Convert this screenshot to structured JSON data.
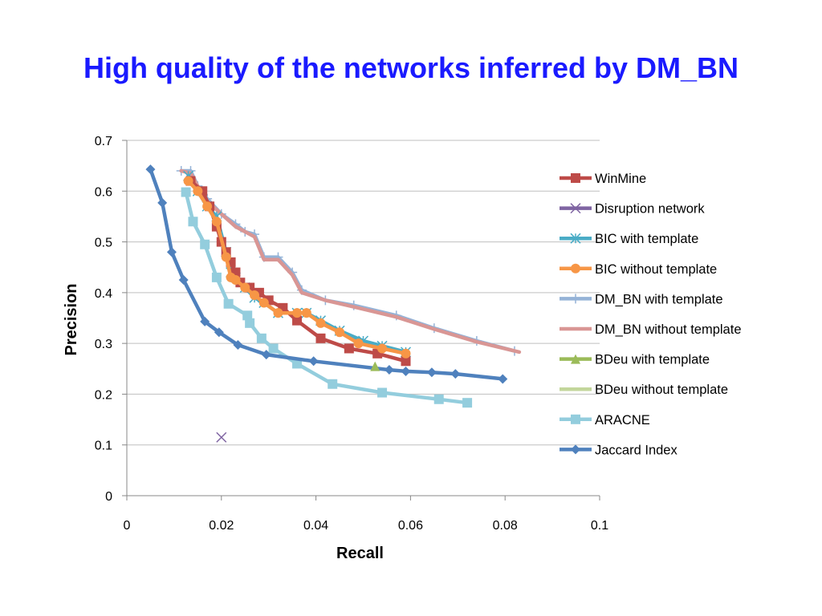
{
  "page": {
    "title": "High quality of the networks inferred by DM_BN"
  },
  "chart_data": {
    "type": "line",
    "xlabel": "Recall",
    "ylabel": "Precision",
    "xlim": [
      0,
      0.1
    ],
    "ylim": [
      0,
      0.7
    ],
    "x_ticks": [
      "0",
      "0.02",
      "0.04",
      "0.06",
      "0.08",
      "0.1"
    ],
    "y_ticks": [
      "0",
      "0.1",
      "0.2",
      "0.3",
      "0.4",
      "0.5",
      "0.6",
      "0.7"
    ],
    "grid": "horizontal",
    "legend_position": "right",
    "series": [
      {
        "name": "WinMine",
        "color": "#be4b48",
        "marker": "square",
        "points": [
          [
            0.0135,
            0.62
          ],
          [
            0.016,
            0.6
          ],
          [
            0.0175,
            0.57
          ],
          [
            0.019,
            0.53
          ],
          [
            0.02,
            0.5
          ],
          [
            0.021,
            0.48
          ],
          [
            0.022,
            0.46
          ],
          [
            0.023,
            0.44
          ],
          [
            0.024,
            0.42
          ],
          [
            0.026,
            0.41
          ],
          [
            0.028,
            0.4
          ],
          [
            0.03,
            0.385
          ],
          [
            0.033,
            0.37
          ],
          [
            0.036,
            0.345
          ],
          [
            0.041,
            0.31
          ],
          [
            0.047,
            0.29
          ],
          [
            0.053,
            0.28
          ],
          [
            0.059,
            0.265
          ]
        ]
      },
      {
        "name": "Disruption network",
        "color": "#7f64a2",
        "marker": "x",
        "points": [
          [
            0.02,
            0.115
          ]
        ]
      },
      {
        "name": "BIC with template",
        "color": "#4aacc6",
        "marker": "asterisk",
        "points": [
          [
            0.013,
            0.63
          ],
          [
            0.015,
            0.6
          ],
          [
            0.017,
            0.57
          ],
          [
            0.019,
            0.55
          ],
          [
            0.021,
            0.48
          ],
          [
            0.022,
            0.44
          ],
          [
            0.023,
            0.43
          ],
          [
            0.025,
            0.41
          ],
          [
            0.027,
            0.39
          ],
          [
            0.029,
            0.38
          ],
          [
            0.032,
            0.36
          ],
          [
            0.036,
            0.36
          ],
          [
            0.038,
            0.36
          ],
          [
            0.041,
            0.345
          ],
          [
            0.045,
            0.325
          ],
          [
            0.05,
            0.305
          ],
          [
            0.054,
            0.295
          ],
          [
            0.059,
            0.283
          ]
        ]
      },
      {
        "name": "BIC without template",
        "color": "#f79646",
        "marker": "circle",
        "points": [
          [
            0.013,
            0.62
          ],
          [
            0.015,
            0.6
          ],
          [
            0.017,
            0.57
          ],
          [
            0.019,
            0.54
          ],
          [
            0.021,
            0.47
          ],
          [
            0.022,
            0.43
          ],
          [
            0.023,
            0.425
          ],
          [
            0.025,
            0.41
          ],
          [
            0.027,
            0.395
          ],
          [
            0.029,
            0.38
          ],
          [
            0.032,
            0.36
          ],
          [
            0.036,
            0.36
          ],
          [
            0.038,
            0.36
          ],
          [
            0.041,
            0.34
          ],
          [
            0.045,
            0.322
          ],
          [
            0.049,
            0.3
          ],
          [
            0.054,
            0.29
          ],
          [
            0.059,
            0.28
          ]
        ]
      },
      {
        "name": "DM_BN with template",
        "color": "#95b3d7",
        "marker": "plus",
        "points": [
          [
            0.0115,
            0.64
          ],
          [
            0.0135,
            0.64
          ],
          [
            0.015,
            0.61
          ],
          [
            0.017,
            0.585
          ],
          [
            0.02,
            0.555
          ],
          [
            0.023,
            0.535
          ],
          [
            0.025,
            0.52
          ],
          [
            0.027,
            0.515
          ],
          [
            0.029,
            0.47
          ],
          [
            0.032,
            0.47
          ],
          [
            0.035,
            0.44
          ],
          [
            0.037,
            0.405
          ],
          [
            0.042,
            0.385
          ],
          [
            0.048,
            0.375
          ],
          [
            0.057,
            0.355
          ],
          [
            0.065,
            0.33
          ],
          [
            0.074,
            0.305
          ],
          [
            0.082,
            0.285
          ]
        ]
      },
      {
        "name": "DM_BN without template",
        "color": "#d99694",
        "marker": "none",
        "points": [
          [
            0.0115,
            0.64
          ],
          [
            0.0135,
            0.635
          ],
          [
            0.015,
            0.61
          ],
          [
            0.017,
            0.58
          ],
          [
            0.02,
            0.555
          ],
          [
            0.023,
            0.53
          ],
          [
            0.025,
            0.52
          ],
          [
            0.027,
            0.51
          ],
          [
            0.029,
            0.465
          ],
          [
            0.032,
            0.465
          ],
          [
            0.035,
            0.435
          ],
          [
            0.037,
            0.4
          ],
          [
            0.042,
            0.385
          ],
          [
            0.048,
            0.372
          ],
          [
            0.057,
            0.352
          ],
          [
            0.065,
            0.328
          ],
          [
            0.074,
            0.303
          ],
          [
            0.083,
            0.283
          ]
        ]
      },
      {
        "name": "BDeu with template",
        "color": "#9bbb59",
        "marker": "triangle",
        "points": [
          [
            0.0525,
            0.255
          ]
        ]
      },
      {
        "name": "BDeu without template",
        "color": "#c3d69b",
        "marker": "none",
        "points": [
          [
            0.051,
            0.3
          ],
          [
            0.054,
            0.295
          ],
          [
            0.058,
            0.283
          ]
        ]
      },
      {
        "name": "ARACNE",
        "color": "#93cddd",
        "marker": "square",
        "points": [
          [
            0.0125,
            0.598
          ],
          [
            0.014,
            0.54
          ],
          [
            0.0165,
            0.495
          ],
          [
            0.019,
            0.43
          ],
          [
            0.0215,
            0.378
          ],
          [
            0.0255,
            0.355
          ],
          [
            0.026,
            0.34
          ],
          [
            0.0285,
            0.31
          ],
          [
            0.031,
            0.29
          ],
          [
            0.036,
            0.26
          ],
          [
            0.0435,
            0.22
          ],
          [
            0.054,
            0.203
          ],
          [
            0.066,
            0.19
          ],
          [
            0.072,
            0.183
          ]
        ]
      },
      {
        "name": "Jaccard Index",
        "color": "#4f81bd",
        "marker": "diamond",
        "points": [
          [
            0.005,
            0.643
          ],
          [
            0.0075,
            0.577
          ],
          [
            0.0095,
            0.48
          ],
          [
            0.012,
            0.425
          ],
          [
            0.0165,
            0.343
          ],
          [
            0.0195,
            0.322
          ],
          [
            0.0235,
            0.297
          ],
          [
            0.0295,
            0.278
          ],
          [
            0.0395,
            0.265
          ],
          [
            0.0555,
            0.248
          ],
          [
            0.059,
            0.245
          ],
          [
            0.0645,
            0.243
          ],
          [
            0.0695,
            0.24
          ],
          [
            0.0795,
            0.23
          ]
        ]
      }
    ]
  }
}
